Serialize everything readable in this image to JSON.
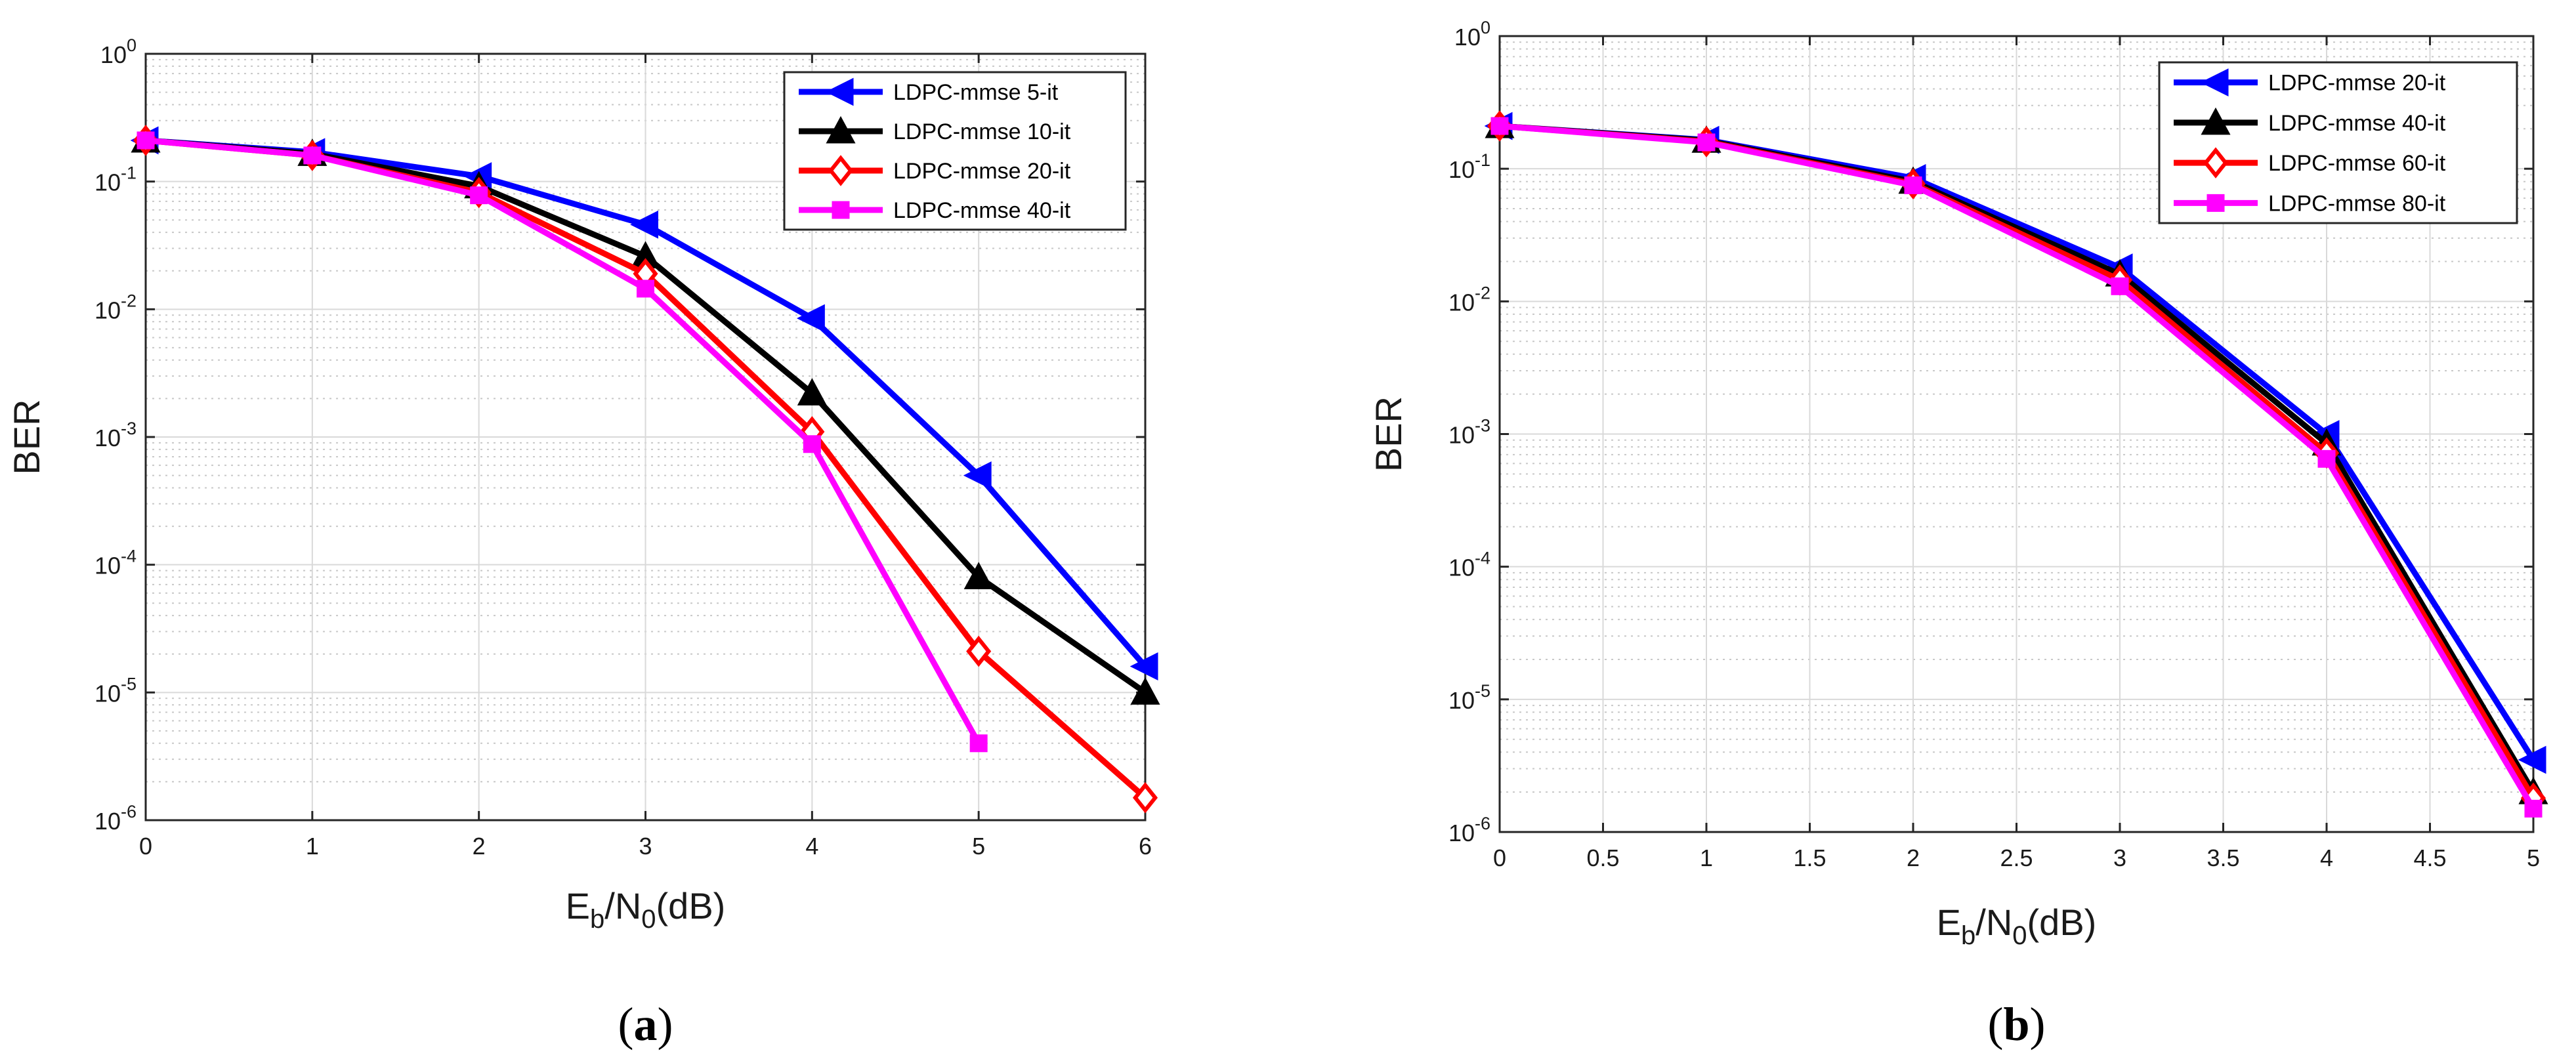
{
  "chart_data": [
    {
      "type": "line",
      "title": "",
      "panel_label": "(a)",
      "xlabel": "Eb/N0(dB)",
      "ylabel": "BER",
      "yscale": "log",
      "xlim": [
        0,
        6
      ],
      "ylim": [
        1e-06,
        1
      ],
      "grid": true,
      "legend_position": "top-right",
      "x_ticks": [
        0,
        1,
        2,
        3,
        4,
        5,
        6
      ],
      "x_tick_labels": [
        "0",
        "1",
        "2",
        "3",
        "4",
        "5",
        "6"
      ],
      "y_ticks": [
        1e-06,
        1e-05,
        0.0001,
        0.001,
        0.01,
        0.1,
        1
      ],
      "y_tick_labels": [
        {
          "base": "10",
          "exp": "-6"
        },
        {
          "base": "10",
          "exp": "-5"
        },
        {
          "base": "10",
          "exp": "-4"
        },
        {
          "base": "10",
          "exp": "-3"
        },
        {
          "base": "10",
          "exp": "-2"
        },
        {
          "base": "10",
          "exp": "-1"
        },
        {
          "base": "10",
          "exp": "0"
        }
      ],
      "series": [
        {
          "name": "LDPC-mmse 5-it",
          "color": "#0000ff",
          "marker": "triangle-left",
          "x": [
            0,
            1,
            2,
            3,
            4,
            5,
            6
          ],
          "values": [
            0.21,
            0.17,
            0.11,
            0.046,
            0.0085,
            0.0005,
            1.6e-05
          ]
        },
        {
          "name": "LDPC-mmse 10-it",
          "color": "#000000",
          "marker": "triangle-up",
          "x": [
            0,
            1,
            2,
            3,
            4,
            5,
            6
          ],
          "values": [
            0.21,
            0.165,
            0.092,
            0.026,
            0.0022,
            8e-05,
            1e-05
          ]
        },
        {
          "name": "LDPC-mmse 20-it",
          "color": "#ff0000",
          "marker": "diamond",
          "x": [
            0,
            1,
            2,
            3,
            4,
            5,
            6
          ],
          "values": [
            0.21,
            0.16,
            0.082,
            0.019,
            0.0011,
            2.1e-05,
            1.5e-06
          ]
        },
        {
          "name": "LDPC-mmse 40-it",
          "color": "#ff00ff",
          "marker": "square",
          "x": [
            0,
            1,
            2,
            3,
            4,
            5
          ],
          "values": [
            0.21,
            0.16,
            0.078,
            0.0145,
            0.00088,
            4e-06
          ]
        }
      ]
    },
    {
      "type": "line",
      "title": "",
      "panel_label": "(b)",
      "xlabel": "Eb/N0(dB)",
      "ylabel": "BER",
      "yscale": "log",
      "xlim": [
        0,
        5
      ],
      "ylim": [
        1e-06,
        1
      ],
      "grid": true,
      "legend_position": "top-right",
      "x_ticks": [
        0,
        0.5,
        1,
        1.5,
        2,
        2.5,
        3,
        3.5,
        4,
        4.5,
        5
      ],
      "x_tick_labels": [
        "0",
        "0.5",
        "1",
        "1.5",
        "2",
        "2.5",
        "3",
        "3.5",
        "4",
        "4.5",
        "5"
      ],
      "y_ticks": [
        1e-06,
        1e-05,
        0.0001,
        0.001,
        0.01,
        0.1,
        1
      ],
      "y_tick_labels": [
        {
          "base": "10",
          "exp": "-6"
        },
        {
          "base": "10",
          "exp": "-5"
        },
        {
          "base": "10",
          "exp": "-4"
        },
        {
          "base": "10",
          "exp": "-3"
        },
        {
          "base": "10",
          "exp": "-2"
        },
        {
          "base": "10",
          "exp": "-1"
        },
        {
          "base": "10",
          "exp": "0"
        }
      ],
      "series": [
        {
          "name": "LDPC-mmse 20-it",
          "color": "#0000ff",
          "marker": "triangle-left",
          "x": [
            0,
            1,
            2,
            3,
            4,
            5
          ],
          "values": [
            0.21,
            0.165,
            0.085,
            0.018,
            0.001,
            3.5e-06
          ]
        },
        {
          "name": "LDPC-mmse 40-it",
          "color": "#000000",
          "marker": "triangle-up",
          "x": [
            0,
            1,
            2,
            3,
            4,
            5
          ],
          "values": [
            0.21,
            0.163,
            0.08,
            0.016,
            0.00085,
            2e-06
          ]
        },
        {
          "name": "LDPC-mmse 60-it",
          "color": "#ff0000",
          "marker": "diamond",
          "x": [
            0,
            1,
            2,
            3,
            4,
            5
          ],
          "values": [
            0.21,
            0.16,
            0.077,
            0.0145,
            0.00072,
            1.8e-06
          ]
        },
        {
          "name": "LDPC-mmse 80-it",
          "color": "#ff00ff",
          "marker": "square",
          "x": [
            0,
            1,
            2,
            3,
            4,
            5
          ],
          "values": [
            0.21,
            0.158,
            0.075,
            0.013,
            0.00065,
            1.5e-06
          ]
        }
      ]
    }
  ],
  "xlabel_parts": {
    "e": "E",
    "b": "b",
    "slash_n": "/N",
    "zero": "0",
    "unit": "(dB)"
  }
}
